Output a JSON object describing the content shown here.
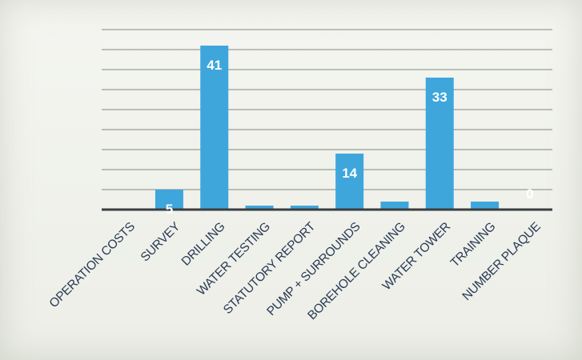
{
  "chart_data": {
    "type": "bar",
    "categories": [
      "OPERATION COSTS",
      "SURVEY",
      "DRILLING",
      "WATER TESTING",
      "STATUTORY REPORT",
      "PUMP + SURROUNDS",
      "BOREHOLE CLEANING",
      "WATER TOWER",
      "TRAINING",
      "NUMBER PLAQUE"
    ],
    "values": [
      0,
      5,
      41,
      1,
      1,
      14,
      2,
      33,
      2,
      0
    ],
    "data_labels": [
      "",
      "5",
      "41",
      "",
      "",
      "14",
      "",
      "33",
      "",
      "0"
    ],
    "ylim": [
      0,
      45
    ],
    "grid": true,
    "colors": {
      "bar": "#3fa6dc",
      "label": "#ffffff",
      "tick": "#2a3a55"
    }
  }
}
